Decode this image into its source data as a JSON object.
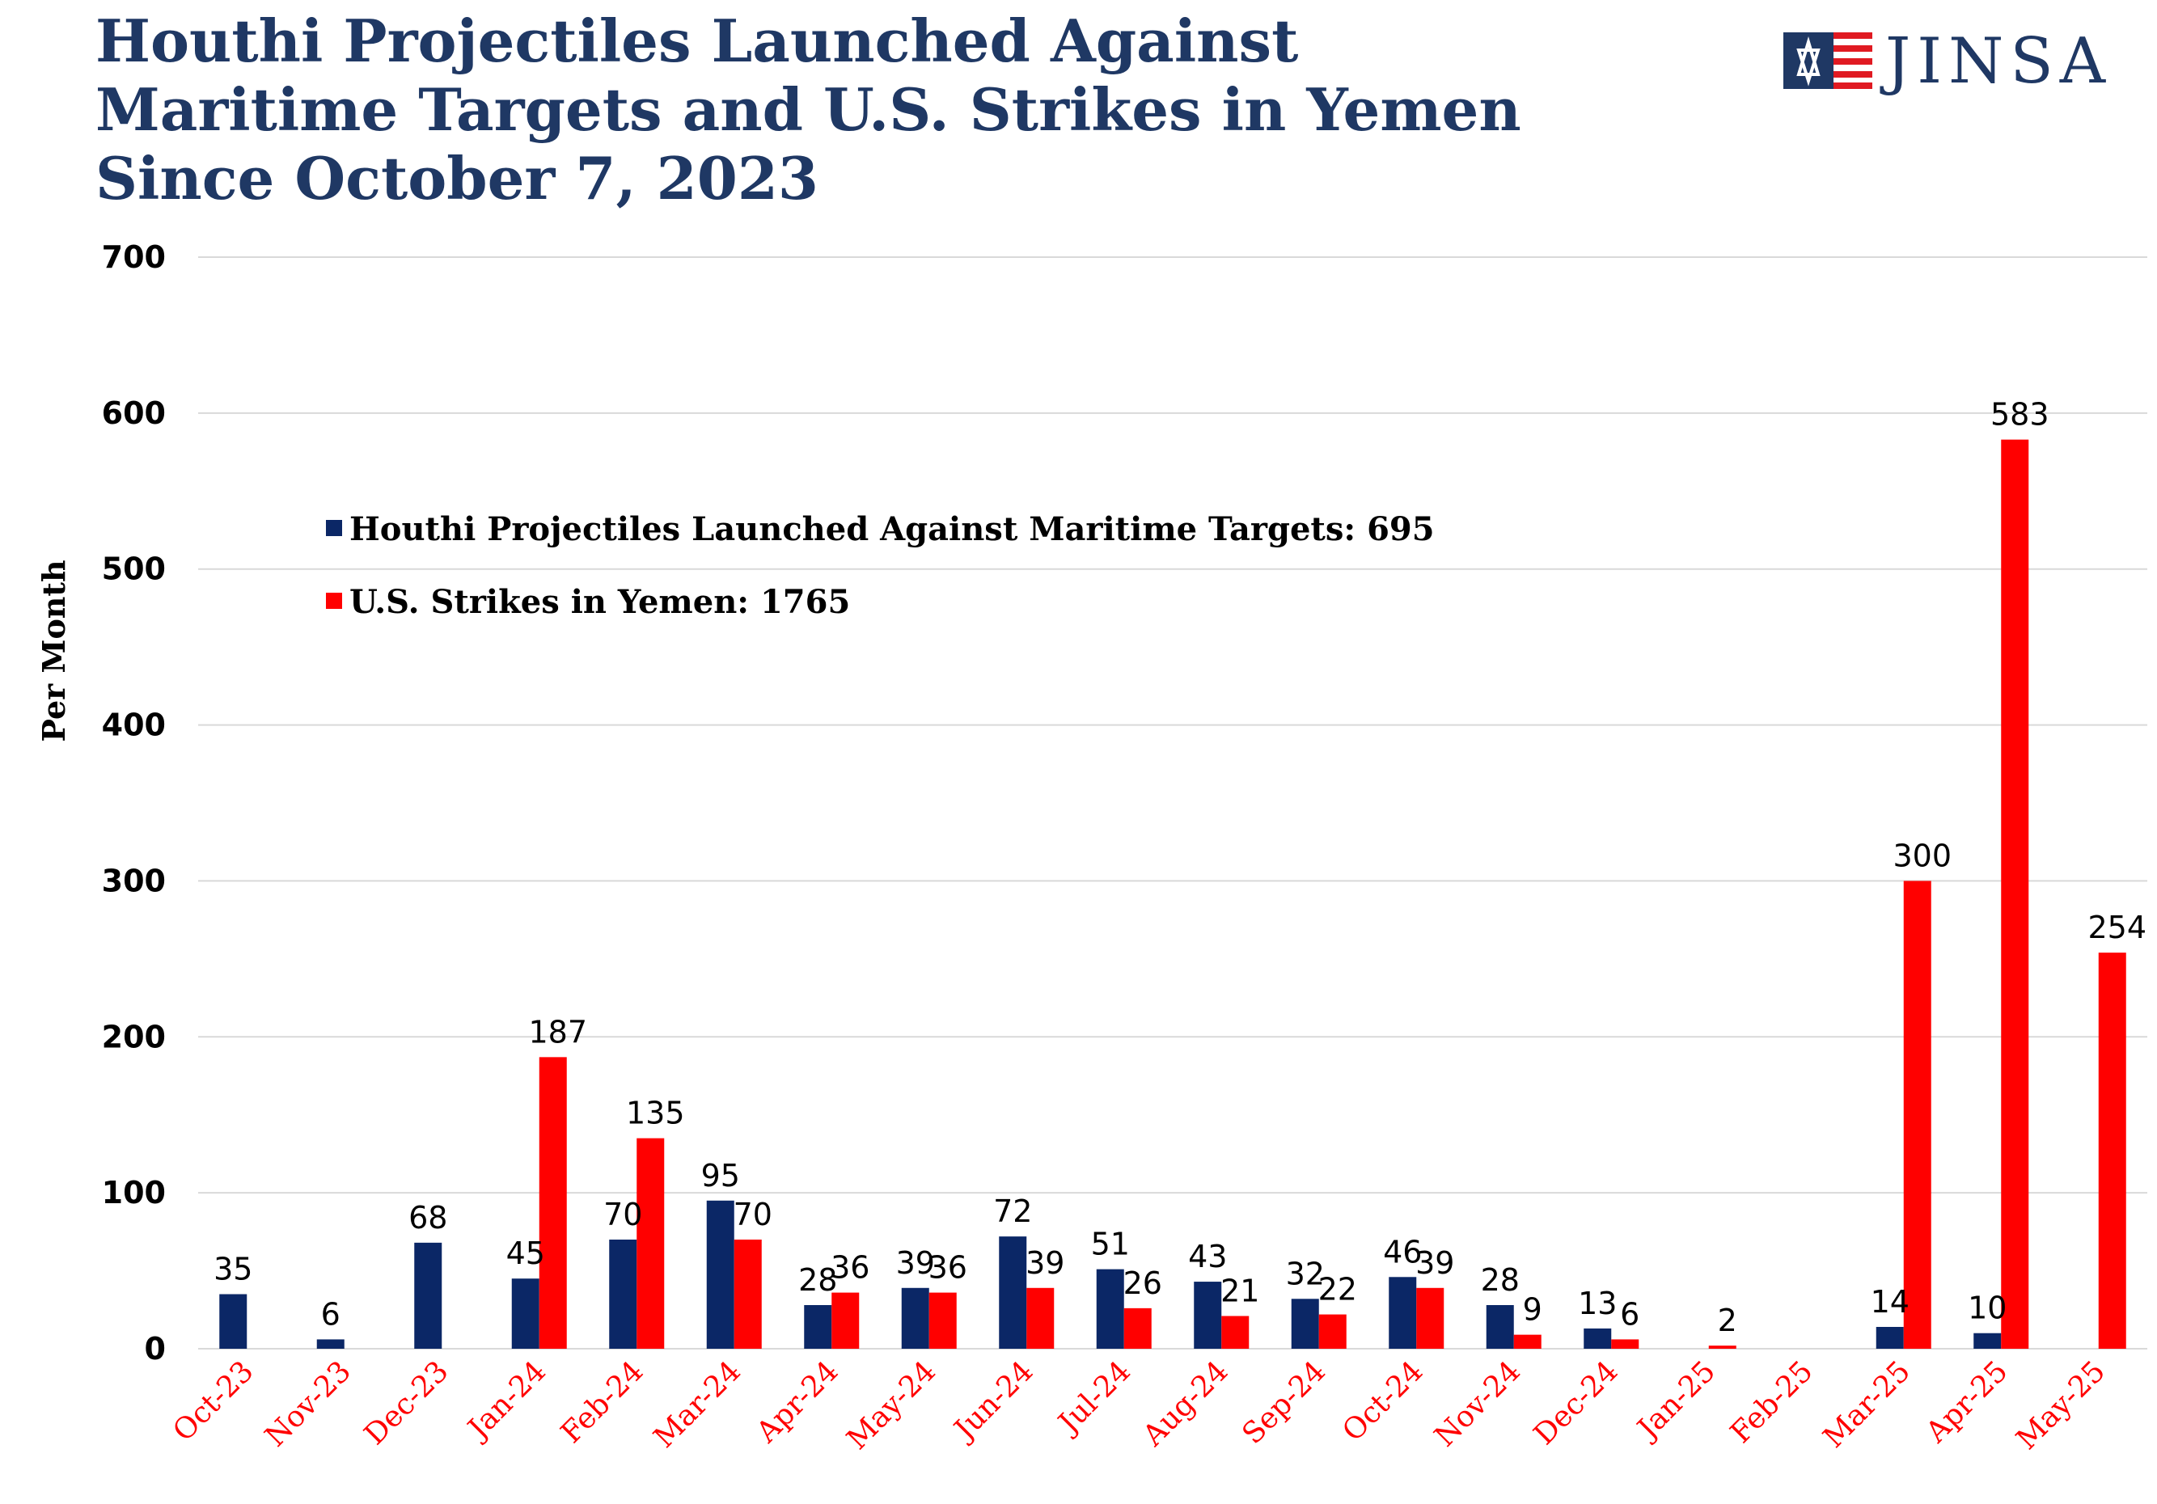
{
  "logo": {
    "text": "JINSA",
    "icon": "flag-star-icon"
  },
  "colors": {
    "title": "#1f3864",
    "series1": "#0b2766",
    "series2": "#ff0000",
    "x_tick": "#ff0000",
    "grid": "#d9d9d9"
  },
  "chart_data": {
    "type": "bar",
    "title_lines": [
      "Houthi Projectiles Launched Against",
      "Maritime Targets and U.S. Strikes in Yemen",
      "Since October 7, 2023"
    ],
    "ylabel": "Per Month",
    "xlabel": "",
    "ylim": [
      0,
      700
    ],
    "yticks": [
      0,
      100,
      200,
      300,
      400,
      500,
      600,
      700
    ],
    "legend_position": "upper-left",
    "categories": [
      "Oct-23",
      "Nov-23",
      "Dec-23",
      "Jan-24",
      "Feb-24",
      "Mar-24",
      "Apr-24",
      "May-24",
      "Jun-24",
      "Jul-24",
      "Aug-24",
      "Sep-24",
      "Oct-24",
      "Nov-24",
      "Dec-24",
      "Jan-25",
      "Feb-25",
      "Mar-25",
      "Apr-25",
      "May-25"
    ],
    "series": [
      {
        "name": "Houthi Projectiles Launched Against Maritime Targets: 695",
        "values": [
          35,
          6,
          68,
          45,
          70,
          95,
          28,
          39,
          72,
          51,
          43,
          32,
          46,
          28,
          13,
          null,
          null,
          14,
          10,
          null
        ]
      },
      {
        "name": "U.S. Strikes in Yemen: 1765",
        "values": [
          null,
          null,
          null,
          187,
          135,
          70,
          36,
          36,
          39,
          26,
          21,
          22,
          39,
          9,
          6,
          2,
          null,
          300,
          583,
          254
        ]
      }
    ]
  }
}
